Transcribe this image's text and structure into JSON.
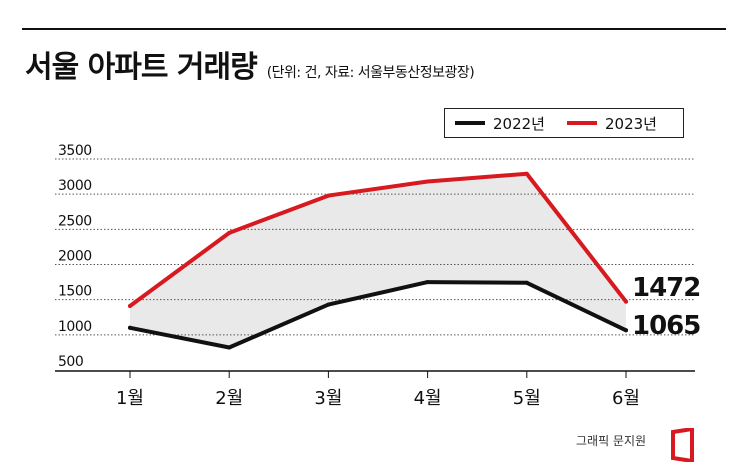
{
  "header": {
    "title": "서울 아파트 거래량",
    "subtitle": "(단위: 건, 자료: 서울부동산정보광장)"
  },
  "footer": {
    "credit": "그래픽 문지원"
  },
  "colors": {
    "series_2022": "#111111",
    "series_2023": "#d71920",
    "fill": "#e9e9e9",
    "grid": "#555555",
    "accent": "#d71920"
  },
  "icons": {
    "logo": "red-bracket-logo"
  },
  "chart_data": {
    "type": "line",
    "title": "서울 아파트 거래량",
    "subtitle": "(단위: 건, 자료: 서울부동산정보광장)",
    "xlabel": "",
    "ylabel": "",
    "categories": [
      "1월",
      "2월",
      "3월",
      "4월",
      "5월",
      "6월"
    ],
    "yticks": [
      "3500",
      "3000",
      "2500",
      "2000",
      "1500",
      "1000",
      "500"
    ],
    "ylim": [
      500,
      3500
    ],
    "grid": true,
    "legend_position": "top-right",
    "series": [
      {
        "name": "2022년",
        "values": [
          1100,
          820,
          1430,
          1750,
          1740,
          1065
        ]
      },
      {
        "name": "2023년",
        "values": [
          1410,
          2450,
          2980,
          3180,
          3290,
          1472
        ]
      }
    ],
    "annotations": [
      "1472",
      "1065"
    ]
  }
}
